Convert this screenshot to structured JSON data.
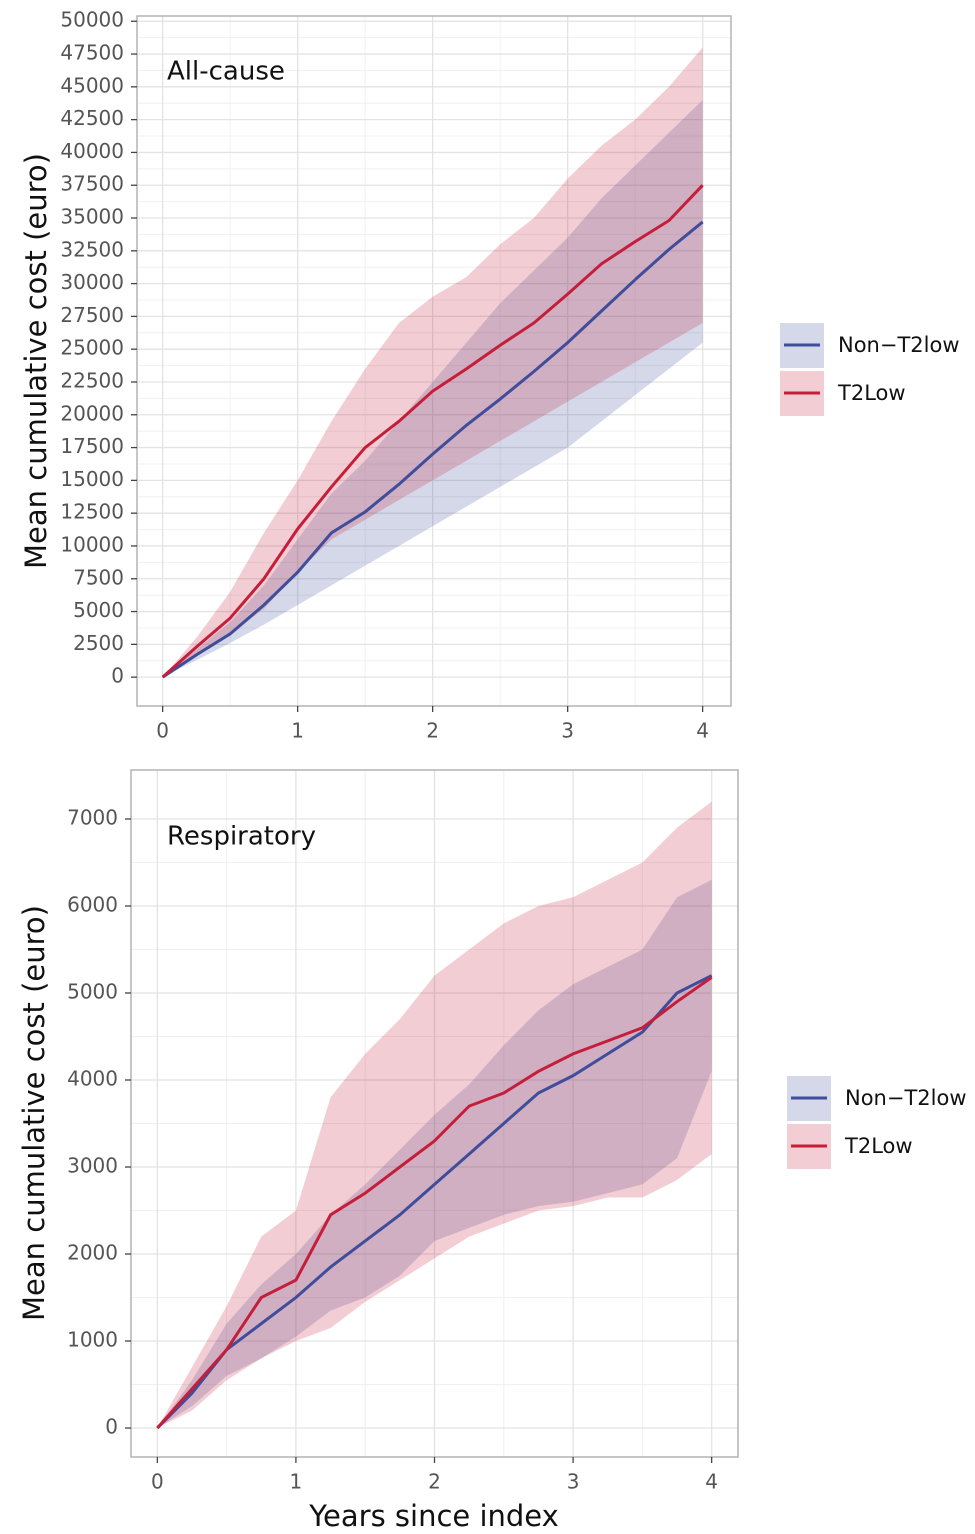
{
  "chart_data": [
    {
      "type": "line",
      "annotation": "All-cause",
      "y_label": "Mean cumulative cost (euro)",
      "x": [
        0,
        0.25,
        0.5,
        0.75,
        1,
        1.25,
        1.5,
        1.75,
        2,
        2.25,
        2.5,
        2.75,
        3,
        3.25,
        3.5,
        3.75,
        4
      ],
      "xlim": [
        -0.19,
        4.21
      ],
      "xticks": [
        0,
        1,
        2,
        3,
        4
      ],
      "ylim": [
        -2200,
        50400
      ],
      "yticks": [
        0,
        2500,
        5000,
        7500,
        10000,
        12500,
        15000,
        17500,
        20000,
        22500,
        25000,
        27500,
        30000,
        32500,
        35000,
        37500,
        40000,
        42500,
        45000,
        47500,
        50000
      ],
      "grid": true,
      "legend": "right",
      "series": [
        {
          "name": "Non−T2low",
          "color": "#3f4d9a",
          "values": [
            0,
            1700,
            3300,
            5500,
            8000,
            11000,
            12600,
            14700,
            17000,
            19200,
            21200,
            23300,
            25500,
            27900,
            30300,
            32600,
            34700
          ],
          "lower": [
            0,
            1300,
            2600,
            4000,
            5500,
            7000,
            8500,
            10000,
            11500,
            13000,
            14500,
            16000,
            17500,
            19500,
            21500,
            23500,
            25500
          ],
          "upper": [
            0,
            2100,
            4200,
            7000,
            10500,
            14000,
            16500,
            19500,
            22500,
            25500,
            28500,
            31000,
            33500,
            36500,
            39000,
            41500,
            44000
          ]
        },
        {
          "name": "T2Low",
          "color": "#c41e3a",
          "values": [
            0,
            2300,
            4500,
            7500,
            11300,
            14500,
            17500,
            19500,
            21800,
            23500,
            25300,
            27000,
            29200,
            31500,
            33200,
            34800,
            37500
          ],
          "lower": [
            0,
            1600,
            3300,
            5200,
            8000,
            10500,
            12000,
            13500,
            15000,
            16500,
            18000,
            19500,
            21000,
            22500,
            24000,
            25500,
            27000
          ],
          "upper": [
            0,
            3000,
            6500,
            11000,
            15000,
            19500,
            23500,
            27000,
            29000,
            30500,
            33000,
            35000,
            38000,
            40500,
            42500,
            45000,
            48000
          ]
        }
      ]
    },
    {
      "type": "line",
      "annotation": "Respiratory",
      "y_label": "Mean cumulative cost (euro)",
      "x_label": "Years since index",
      "x": [
        0,
        0.25,
        0.5,
        0.75,
        1,
        1.25,
        1.5,
        1.75,
        2,
        2.25,
        2.5,
        2.75,
        3,
        3.25,
        3.5,
        3.75,
        4
      ],
      "xlim": [
        -0.19,
        4.19
      ],
      "xticks": [
        0,
        1,
        2,
        3,
        4
      ],
      "ylim": [
        -333,
        7563
      ],
      "yticks": [
        0,
        1000,
        2000,
        3000,
        4000,
        5000,
        6000,
        7000
      ],
      "grid": true,
      "legend": "right",
      "series": [
        {
          "name": "Non−T2low",
          "color": "#3f4d9a",
          "values": [
            0,
            400,
            900,
            1200,
            1500,
            1850,
            2150,
            2450,
            2800,
            3150,
            3500,
            3850,
            4050,
            4300,
            4550,
            5000,
            5200
          ],
          "lower": [
            0,
            250,
            600,
            800,
            1050,
            1350,
            1500,
            1750,
            2150,
            2300,
            2450,
            2550,
            2600,
            2700,
            2800,
            3100,
            4100
          ],
          "upper": [
            0,
            550,
            1200,
            1650,
            2000,
            2450,
            2800,
            3200,
            3600,
            3950,
            4400,
            4800,
            5100,
            5300,
            5500,
            6100,
            6300
          ]
        },
        {
          "name": "T2Low",
          "color": "#c41e3a",
          "values": [
            0,
            450,
            900,
            1500,
            1700,
            2450,
            2700,
            3000,
            3300,
            3700,
            3850,
            4100,
            4300,
            4450,
            4600,
            4900,
            5180
          ],
          "lower": [
            0,
            200,
            550,
            800,
            1000,
            1150,
            1450,
            1700,
            1950,
            2200,
            2350,
            2500,
            2550,
            2650,
            2650,
            2850,
            3150
          ],
          "upper": [
            0,
            700,
            1400,
            2200,
            2500,
            3800,
            4300,
            4700,
            5200,
            5500,
            5800,
            6000,
            6100,
            6300,
            6500,
            6900,
            7200
          ]
        }
      ]
    }
  ]
}
